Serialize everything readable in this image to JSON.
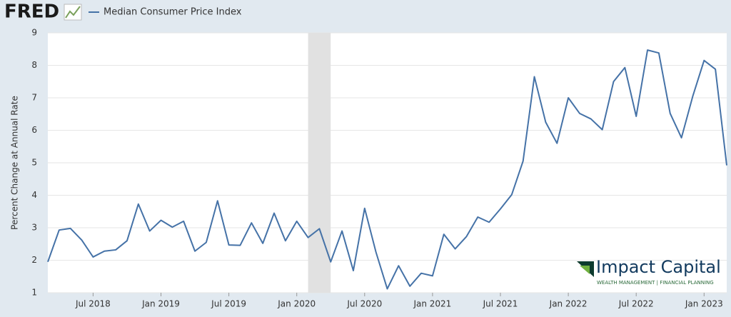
{
  "chart_data": {
    "type": "line",
    "logo": "FRED",
    "y_label": "Percent Change at Annual Rate",
    "watermark": {
      "title": "Impact Capital",
      "subtitle": "WEALTH MANAGEMENT | FINANCIAL PLANNING"
    },
    "x": [
      "2018-03",
      "2018-04",
      "2018-05",
      "2018-06",
      "2018-07",
      "2018-08",
      "2018-09",
      "2018-10",
      "2018-11",
      "2018-12",
      "2019-01",
      "2019-02",
      "2019-03",
      "2019-04",
      "2019-05",
      "2019-06",
      "2019-07",
      "2019-08",
      "2019-09",
      "2019-10",
      "2019-11",
      "2019-12",
      "2020-01",
      "2020-02",
      "2020-03",
      "2020-04",
      "2020-05",
      "2020-06",
      "2020-07",
      "2020-08",
      "2020-09",
      "2020-10",
      "2020-11",
      "2020-12",
      "2021-01",
      "2021-02",
      "2021-03",
      "2021-04",
      "2021-05",
      "2021-06",
      "2021-07",
      "2021-08",
      "2021-09",
      "2021-10",
      "2021-11",
      "2021-12",
      "2022-01",
      "2022-02",
      "2022-03",
      "2022-04",
      "2022-05",
      "2022-06",
      "2022-07",
      "2022-08",
      "2022-09",
      "2022-10",
      "2022-11",
      "2022-12",
      "2023-01",
      "2023-02",
      "2023-03"
    ],
    "series": [
      {
        "name": "Median Consumer Price Index",
        "color": "#4572a7",
        "values": [
          1.95,
          2.93,
          2.98,
          2.62,
          2.1,
          2.28,
          2.32,
          2.6,
          3.73,
          2.9,
          3.23,
          3.02,
          3.2,
          2.28,
          2.55,
          3.83,
          2.47,
          2.46,
          3.15,
          2.52,
          3.45,
          2.6,
          3.2,
          2.7,
          2.97,
          1.95,
          2.9,
          1.68,
          3.6,
          2.25,
          1.12,
          1.83,
          1.2,
          1.6,
          1.52,
          2.8,
          2.35,
          2.73,
          3.33,
          3.17,
          3.58,
          4.02,
          5.05,
          7.65,
          6.25,
          5.6,
          7.0,
          6.52,
          6.35,
          6.02,
          7.5,
          7.93,
          6.43,
          8.47,
          8.38,
          6.52,
          5.77,
          7.05,
          8.15,
          7.88,
          4.92
        ]
      }
    ],
    "xlim": [
      "2018-03",
      "2023-03"
    ],
    "xticks": [
      {
        "value": "2018-07",
        "label": "Jul 2018"
      },
      {
        "value": "2019-01",
        "label": "Jan 2019"
      },
      {
        "value": "2019-07",
        "label": "Jul 2019"
      },
      {
        "value": "2020-01",
        "label": "Jan 2020"
      },
      {
        "value": "2020-07",
        "label": "Jul 2020"
      },
      {
        "value": "2021-01",
        "label": "Jan 2021"
      },
      {
        "value": "2021-07",
        "label": "Jul 2021"
      },
      {
        "value": "2022-01",
        "label": "Jan 2022"
      },
      {
        "value": "2022-07",
        "label": "Jul 2022"
      },
      {
        "value": "2023-01",
        "label": "Jan 2023"
      }
    ],
    "ylim": [
      1,
      9
    ],
    "yticks": [
      1,
      2,
      3,
      4,
      5,
      6,
      7,
      8,
      9
    ],
    "grid": true,
    "recession": {
      "start": "2020-02",
      "end": "2020-04",
      "color": "#e1e1e1"
    }
  }
}
